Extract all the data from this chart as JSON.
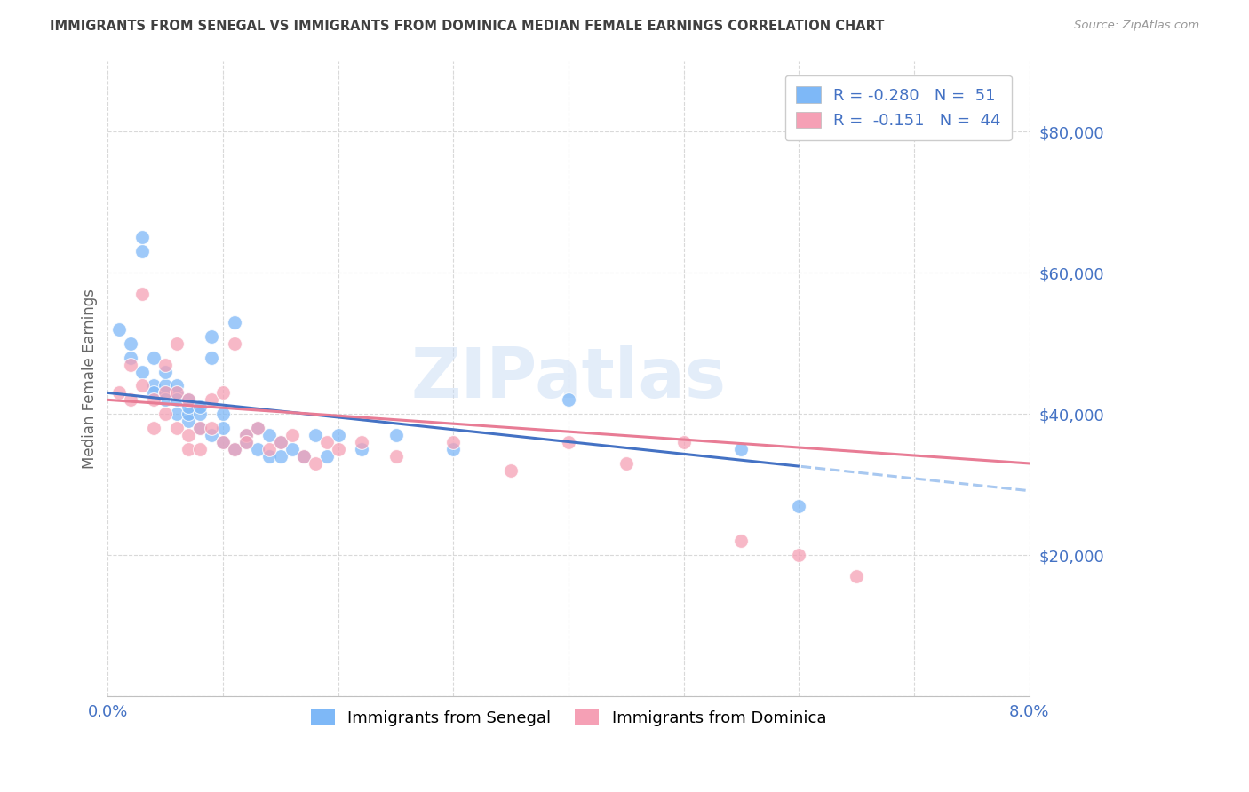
{
  "title": "IMMIGRANTS FROM SENEGAL VS IMMIGRANTS FROM DOMINICA MEDIAN FEMALE EARNINGS CORRELATION CHART",
  "source": "Source: ZipAtlas.com",
  "ylabel": "Median Female Earnings",
  "xlim": [
    0.0,
    0.08
  ],
  "ylim": [
    0,
    90000
  ],
  "yticks": [
    0,
    20000,
    40000,
    60000,
    80000
  ],
  "xtick_vals": [
    0.0,
    0.01,
    0.02,
    0.03,
    0.04,
    0.05,
    0.06,
    0.07,
    0.08
  ],
  "xtick_labels": [
    "0.0%",
    "",
    "",
    "",
    "",
    "",
    "",
    "",
    "8.0%"
  ],
  "senegal_color": "#7EB8F7",
  "dominica_color": "#F5A0B5",
  "trend_senegal_solid_color": "#4472C4",
  "trend_senegal_dash_color": "#A8C8F0",
  "trend_dominica_color": "#E87C95",
  "background_color": "#FFFFFF",
  "grid_color": "#D0D0D0",
  "axis_label_color": "#4472C4",
  "title_color": "#404040",
  "watermark_text": "ZIPatlas",
  "legend_r_senegal": "-0.280",
  "legend_n_senegal": "51",
  "legend_r_dominica": "-0.151",
  "legend_n_dominica": "44",
  "senegal_x": [
    0.001,
    0.002,
    0.002,
    0.003,
    0.003,
    0.003,
    0.004,
    0.004,
    0.004,
    0.005,
    0.005,
    0.005,
    0.005,
    0.006,
    0.006,
    0.006,
    0.006,
    0.007,
    0.007,
    0.007,
    0.007,
    0.008,
    0.008,
    0.008,
    0.009,
    0.009,
    0.009,
    0.01,
    0.01,
    0.01,
    0.011,
    0.011,
    0.012,
    0.012,
    0.013,
    0.013,
    0.014,
    0.014,
    0.015,
    0.015,
    0.016,
    0.017,
    0.018,
    0.019,
    0.02,
    0.022,
    0.025,
    0.03,
    0.04,
    0.055,
    0.06
  ],
  "senegal_y": [
    52000,
    50000,
    48000,
    65000,
    63000,
    46000,
    44000,
    43000,
    48000,
    43000,
    44000,
    46000,
    42000,
    40000,
    43000,
    44000,
    42000,
    39000,
    40000,
    41000,
    42000,
    38000,
    40000,
    41000,
    37000,
    51000,
    48000,
    36000,
    38000,
    40000,
    35000,
    53000,
    37000,
    36000,
    35000,
    38000,
    34000,
    37000,
    36000,
    34000,
    35000,
    34000,
    37000,
    34000,
    37000,
    35000,
    37000,
    35000,
    42000,
    35000,
    27000
  ],
  "dominica_x": [
    0.001,
    0.002,
    0.002,
    0.003,
    0.003,
    0.004,
    0.004,
    0.005,
    0.005,
    0.005,
    0.006,
    0.006,
    0.006,
    0.007,
    0.007,
    0.007,
    0.008,
    0.008,
    0.009,
    0.009,
    0.01,
    0.01,
    0.011,
    0.011,
    0.012,
    0.012,
    0.013,
    0.014,
    0.015,
    0.016,
    0.017,
    0.018,
    0.019,
    0.02,
    0.022,
    0.025,
    0.03,
    0.035,
    0.04,
    0.045,
    0.05,
    0.055,
    0.06,
    0.065
  ],
  "dominica_y": [
    43000,
    42000,
    47000,
    44000,
    57000,
    42000,
    38000,
    40000,
    43000,
    47000,
    38000,
    43000,
    50000,
    37000,
    35000,
    42000,
    38000,
    35000,
    42000,
    38000,
    36000,
    43000,
    35000,
    50000,
    37000,
    36000,
    38000,
    35000,
    36000,
    37000,
    34000,
    33000,
    36000,
    35000,
    36000,
    34000,
    36000,
    32000,
    36000,
    33000,
    36000,
    22000,
    20000,
    17000
  ]
}
